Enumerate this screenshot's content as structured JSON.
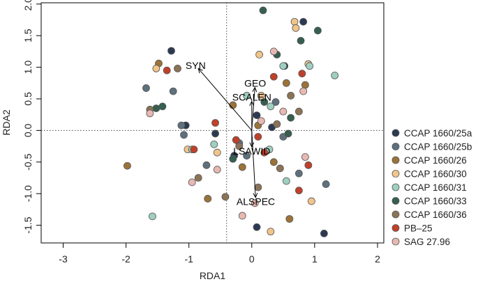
{
  "chart_data": {
    "type": "scatter",
    "xlabel": "RDA1",
    "ylabel": "RDA2",
    "xlim": [
      -3.35,
      2.1
    ],
    "ylim": [
      -1.78,
      2.02
    ],
    "x_ticks": [
      "-3",
      "-2",
      "-1",
      "0",
      "1",
      "2"
    ],
    "x_tick_values": [
      -3,
      -2,
      -1,
      0,
      1,
      2
    ],
    "y_ticks": [
      "-1.5",
      "-1.0",
      "-0.5",
      "0.0",
      "0.5",
      "1.0",
      "1.5",
      "2.0"
    ],
    "y_tick_values": [
      -1.5,
      -1.0,
      -0.5,
      0.0,
      0.5,
      1.0,
      1.5,
      2.0
    ],
    "reference_lines": {
      "x": -0.4,
      "y": 0.0,
      "style": "dotted"
    },
    "grid": false,
    "legend_position": "right",
    "series": [
      {
        "name": "CCAP 1660/25a",
        "color": "#2b3a52",
        "points": [
          [
            -1.28,
            1.26
          ],
          [
            -1.05,
            0.08
          ],
          [
            0.08,
            -1.53
          ],
          [
            1.15,
            -1.63
          ],
          [
            0.82,
            1.72
          ],
          [
            0.52,
            1.02
          ],
          [
            0.08,
            0.24
          ],
          [
            -0.58,
            -0.05
          ],
          [
            0.32,
            0.05
          ],
          [
            -0.28,
            -0.4
          ]
        ]
      },
      {
        "name": "CCAP 1660/25b",
        "color": "#5e707c",
        "points": [
          [
            -1.68,
            0.67
          ],
          [
            -1.25,
            0.62
          ],
          [
            -1.12,
            0.08
          ],
          [
            -1.08,
            -0.07
          ],
          [
            1.18,
            -0.85
          ],
          [
            0.75,
            -0.68
          ],
          [
            -0.72,
            -0.55
          ],
          [
            -0.08,
            -0.4
          ],
          [
            0.5,
            -0.1
          ],
          [
            0.38,
            0.45
          ],
          [
            -0.2,
            -0.2
          ]
        ]
      },
      {
        "name": "CCAP 1660/26",
        "color": "#9b7338",
        "points": [
          [
            -1.48,
            1.06
          ],
          [
            -1.98,
            -0.56
          ],
          [
            -0.7,
            -1.08
          ],
          [
            -0.15,
            -0.58
          ],
          [
            0.1,
            0.08
          ],
          [
            0.55,
            0.75
          ],
          [
            0.85,
            0.72
          ],
          [
            0.35,
            -0.5
          ],
          [
            0.6,
            -1.4
          ],
          [
            -0.3,
            0.4
          ]
        ]
      },
      {
        "name": "CCAP 1660/30",
        "color": "#f0c48a",
        "points": [
          [
            -1.52,
            0.98
          ],
          [
            0.12,
            1.2
          ],
          [
            0.68,
            1.72
          ],
          [
            0.7,
            1.62
          ],
          [
            0.9,
            1.05
          ],
          [
            -1.02,
            -0.3
          ],
          [
            0.3,
            -1.6
          ],
          [
            0.95,
            -1.12
          ],
          [
            0.15,
            0.55
          ],
          [
            -0.55,
            -0.35
          ]
        ]
      },
      {
        "name": "CCAP 1660/31",
        "color": "#9fcfc0",
        "points": [
          [
            -1.58,
            -1.36
          ],
          [
            1.32,
            0.87
          ],
          [
            -0.95,
            -0.3
          ],
          [
            0.92,
            1.02
          ],
          [
            0.5,
            1.02
          ],
          [
            -0.08,
            0.55
          ],
          [
            0.3,
            0.38
          ],
          [
            0.28,
            -0.3
          ],
          [
            0.55,
            -0.8
          ],
          [
            -0.6,
            -0.22
          ]
        ]
      },
      {
        "name": "CCAP 1660/33",
        "color": "#355f4f",
        "points": [
          [
            0.18,
            1.9
          ],
          [
            1.05,
            1.58
          ],
          [
            0.78,
            1.42
          ],
          [
            0.4,
            1.2
          ],
          [
            -1.42,
            0.38
          ],
          [
            -1.52,
            0.35
          ],
          [
            0.62,
            0.2
          ],
          [
            -0.3,
            -0.45
          ],
          [
            0.58,
            -0.05
          ],
          [
            0.2,
            0.45
          ]
        ]
      },
      {
        "name": "CCAP 1660/36",
        "color": "#8b7358",
        "points": [
          [
            -1.18,
            0.98
          ],
          [
            -1.62,
            0.33
          ],
          [
            -0.85,
            -0.75
          ],
          [
            -0.2,
            -0.25
          ],
          [
            0.62,
            0.55
          ],
          [
            0.75,
            0.3
          ],
          [
            -0.42,
            -1.05
          ],
          [
            0.45,
            -0.6
          ],
          [
            0.1,
            -0.9
          ],
          [
            0.4,
            0.1
          ]
        ]
      },
      {
        "name": "PB–25",
        "color": "#c0402a",
        "points": [
          [
            -1.35,
            0.95
          ],
          [
            0.8,
            0.9
          ],
          [
            -0.92,
            -0.3
          ],
          [
            -0.58,
            0.12
          ],
          [
            0.2,
            -0.35
          ],
          [
            0.75,
            -0.95
          ],
          [
            -0.25,
            -0.15
          ],
          [
            0.35,
            0.85
          ],
          [
            0.1,
            -0.1
          ],
          [
            0.9,
            -0.55
          ]
        ]
      },
      {
        "name": "SAG 27.96",
        "color": "#e8b8b2",
        "points": [
          [
            -1.62,
            0.27
          ],
          [
            -0.95,
            -0.82
          ],
          [
            0.35,
            1.25
          ],
          [
            0.82,
            0.62
          ],
          [
            0.85,
            -0.42
          ],
          [
            -0.55,
            -0.62
          ],
          [
            0.05,
            -1.15
          ],
          [
            0.5,
            0.3
          ],
          [
            -0.15,
            -1.35
          ],
          [
            0.15,
            0.15
          ]
        ]
      }
    ],
    "vectors": [
      {
        "label": "SYN",
        "x": -0.85,
        "y": 0.98
      },
      {
        "label": "GEO",
        "x": 0.05,
        "y": 0.68
      },
      {
        "label": "SCALEN",
        "x": 0.0,
        "y": 0.46
      },
      {
        "label": "LSAWID",
        "x": 0.0,
        "y": -0.26
      },
      {
        "label": "ALSPEC",
        "x": 0.06,
        "y": -1.06
      }
    ],
    "vector_origin": [
      0.0,
      0.0
    ]
  }
}
